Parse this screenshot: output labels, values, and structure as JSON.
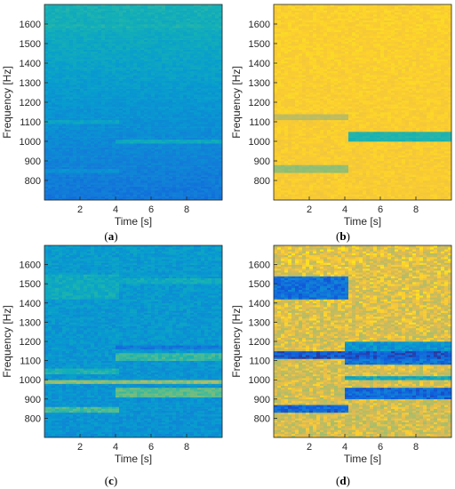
{
  "chart_data": [
    {
      "panel": "(a)",
      "caption_letter": "a",
      "type": "heatmap",
      "colormap": "parula",
      "xlabel": "Time [s]",
      "ylabel": "Frequency [Hz]",
      "xlim": [
        0,
        10
      ],
      "ylim": [
        700,
        1700
      ],
      "xticks": [
        2,
        4,
        6,
        8
      ],
      "yticks": [
        800,
        900,
        1000,
        1100,
        1200,
        1300,
        1400,
        1500,
        1600
      ],
      "base": {
        "low_freq_level": 0.22,
        "high_freq_level": 0.5,
        "noise": 0.04
      },
      "bands": [
        {
          "t0": 0,
          "t1": 4.1,
          "f0": 1092,
          "f1": 1110,
          "level": 0.42
        },
        {
          "t0": 0,
          "t1": 4.1,
          "f0": 840,
          "f1": 860,
          "level": 0.34
        },
        {
          "t0": 4.1,
          "t1": 10,
          "f0": 990,
          "f1": 1012,
          "level": 0.45
        },
        {
          "t0": 0,
          "t1": 10,
          "f0": 1580,
          "f1": 1600,
          "level": 0.5
        }
      ]
    },
    {
      "panel": "(b)",
      "caption_letter": "b",
      "type": "heatmap",
      "colormap": "parula",
      "xlabel": "Time [s]",
      "ylabel": "Frequency [Hz]",
      "xlim": [
        0,
        10
      ],
      "ylim": [
        700,
        1700
      ],
      "xticks": [
        2,
        4,
        6,
        8
      ],
      "yticks": [
        800,
        900,
        1000,
        1100,
        1200,
        1300,
        1400,
        1500,
        1600
      ],
      "base": {
        "low_freq_level": 0.93,
        "high_freq_level": 0.94,
        "noise": 0.02
      },
      "bands": [
        {
          "t0": 0,
          "t1": 4.1,
          "f0": 1110,
          "f1": 1140,
          "level": 0.8
        },
        {
          "t0": 0,
          "t1": 4.1,
          "f0": 845,
          "f1": 880,
          "level": 0.72
        },
        {
          "t0": 4.2,
          "t1": 10,
          "f0": 1000,
          "f1": 1050,
          "level": 0.52
        }
      ]
    },
    {
      "panel": "(c)",
      "caption_letter": "c",
      "type": "heatmap",
      "colormap": "parula",
      "xlabel": "Time [s]",
      "ylabel": "Frequency [Hz]",
      "xlim": [
        0,
        10
      ],
      "ylim": [
        700,
        1700
      ],
      "xticks": [
        2,
        4,
        6,
        8
      ],
      "yticks": [
        800,
        900,
        1000,
        1100,
        1200,
        1300,
        1400,
        1500,
        1600
      ],
      "base": {
        "low_freq_level": 0.34,
        "high_freq_level": 0.38,
        "noise": 0.06
      },
      "bands": [
        {
          "t0": 0,
          "t1": 10,
          "f0": 985,
          "f1": 1000,
          "level": 0.72
        },
        {
          "t0": 0,
          "t1": 4.1,
          "f0": 1420,
          "f1": 1550,
          "level": 0.46
        },
        {
          "t0": 0,
          "t1": 4.1,
          "f0": 1030,
          "f1": 1060,
          "level": 0.5
        },
        {
          "t0": 0,
          "t1": 4.1,
          "f0": 835,
          "f1": 860,
          "level": 0.58
        },
        {
          "t0": 4.1,
          "t1": 10,
          "f0": 1100,
          "f1": 1140,
          "level": 0.56
        },
        {
          "t0": 4.1,
          "t1": 10,
          "f0": 910,
          "f1": 960,
          "level": 0.62
        },
        {
          "t0": 4.1,
          "t1": 10,
          "f0": 1160,
          "f1": 1180,
          "level": 0.24
        },
        {
          "t0": 4.1,
          "t1": 10,
          "f0": 1500,
          "f1": 1530,
          "level": 0.46
        }
      ]
    },
    {
      "panel": "(d)",
      "caption_letter": "d",
      "type": "heatmap",
      "colormap": "parula",
      "xlabel": "Time [s]",
      "ylabel": "Frequency [Hz]",
      "xlim": [
        0,
        10
      ],
      "ylim": [
        700,
        1700
      ],
      "xticks": [
        2,
        4,
        6,
        8
      ],
      "yticks": [
        800,
        900,
        1000,
        1100,
        1200,
        1300,
        1400,
        1500,
        1600
      ],
      "base": {
        "low_freq_level": 0.84,
        "high_freq_level": 0.88,
        "noise": 0.1
      },
      "bands": [
        {
          "t0": 0,
          "t1": 4.1,
          "f0": 1420,
          "f1": 1540,
          "level": 0.2
        },
        {
          "t0": 0,
          "t1": 10,
          "f0": 1115,
          "f1": 1150,
          "level": 0.12
        },
        {
          "t0": 4.1,
          "t1": 10,
          "f0": 1080,
          "f1": 1110,
          "level": 0.2
        },
        {
          "t0": 4.1,
          "t1": 10,
          "f0": 1150,
          "f1": 1200,
          "level": 0.35
        },
        {
          "t0": 0,
          "t1": 4.1,
          "f0": 835,
          "f1": 865,
          "level": 0.18
        },
        {
          "t0": 4.1,
          "t1": 10,
          "f0": 900,
          "f1": 960,
          "level": 0.18
        },
        {
          "t0": 4.1,
          "t1": 10,
          "f0": 1000,
          "f1": 1020,
          "level": 0.45
        }
      ]
    }
  ]
}
